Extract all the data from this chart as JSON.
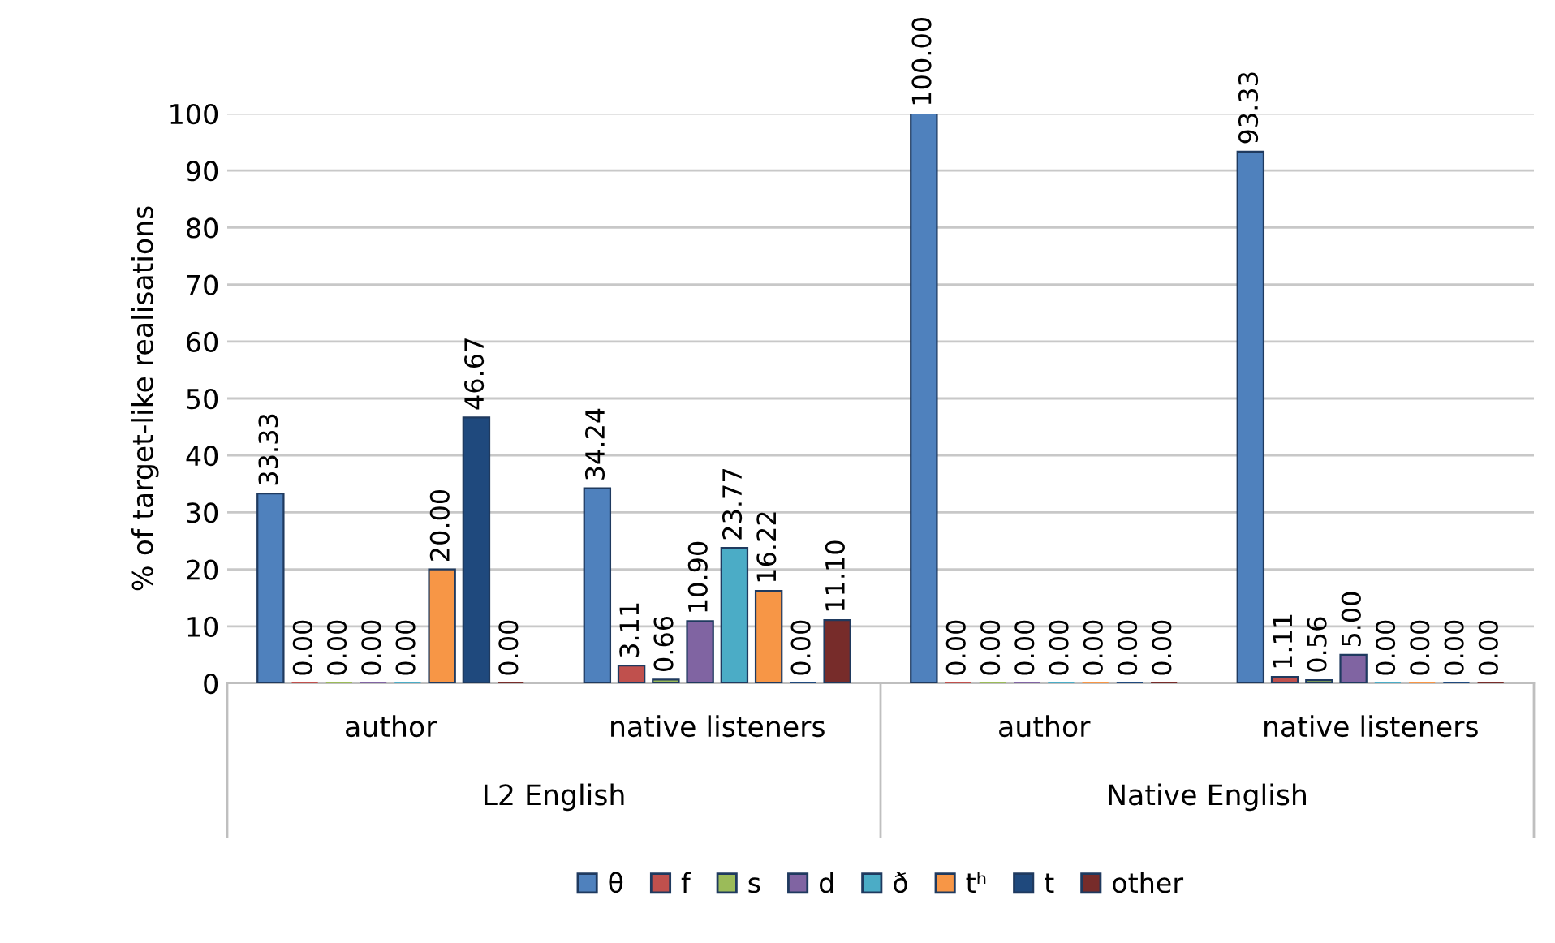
{
  "chart_data": {
    "type": "bar",
    "ylabel": "% of target-like realisations",
    "categories": [
      "author",
      "native listeners",
      "author",
      "native listeners"
    ],
    "annotations": [
      "L2 English",
      "Native English"
    ],
    "series": [
      {
        "name": "θ",
        "color": "#4f81bd",
        "values": [
          33.33,
          34.24,
          100.0,
          93.33
        ],
        "value_labels": [
          "33.33",
          "34.24",
          "100.00",
          "93.33"
        ]
      },
      {
        "name": "f",
        "color": "#c0504d",
        "values": [
          0.0,
          3.11,
          0.0,
          1.11
        ],
        "value_labels": [
          "0.00",
          "3.11",
          "0.00",
          "1.11"
        ]
      },
      {
        "name": "s",
        "color": "#9bbb59",
        "values": [
          0.0,
          0.66,
          0.0,
          0.56
        ],
        "value_labels": [
          "0.00",
          "0.66",
          "0.00",
          "0.56"
        ]
      },
      {
        "name": "d",
        "color": "#8064a2",
        "values": [
          0.0,
          10.9,
          0.0,
          5.0
        ],
        "value_labels": [
          "0.00",
          "10.90",
          "0.00",
          "5.00"
        ]
      },
      {
        "name": "ð",
        "color": "#4bacc6",
        "values": [
          0.0,
          23.77,
          0.0,
          0.0
        ],
        "value_labels": [
          "0.00",
          "23.77",
          "0.00",
          "0.00"
        ]
      },
      {
        "name": "tʰ",
        "color": "#f79646",
        "values": [
          20.0,
          16.22,
          0.0,
          0.0
        ],
        "value_labels": [
          "20.00",
          "16.22",
          "0.00",
          "0.00"
        ]
      },
      {
        "name": "t",
        "color": "#1f497d",
        "values": [
          46.67,
          0.0,
          0.0,
          0.0
        ],
        "value_labels": [
          "46.67",
          "0.00",
          "0.00",
          "0.00"
        ]
      },
      {
        "name": "other",
        "color": "#772c2a",
        "values": [
          0.0,
          11.1,
          0.0,
          0.0
        ],
        "value_labels": [
          "0.00",
          "11.10",
          "0.00",
          "0.00"
        ]
      }
    ],
    "ylim": [
      0,
      100
    ],
    "yticks": [
      0,
      10,
      20,
      30,
      40,
      50,
      60,
      70,
      80,
      90,
      100
    ],
    "grid": "y",
    "legend": "bottom"
  }
}
